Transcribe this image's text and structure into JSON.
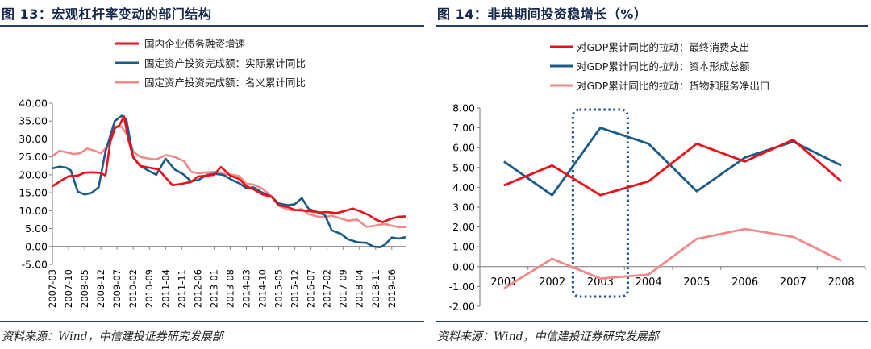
{
  "left": {
    "title": "图 13：宏观杠杆率变动的部门结构",
    "source": "资料来源：Wind，中信建投证券研究发展部"
  },
  "right": {
    "title": "图 14：非典期间投资稳增长（%）",
    "source": "资料来源：Wind，中信建投证券研究发展部"
  },
  "colors": {
    "red": "#e8111a",
    "blue": "#1b5b87",
    "pink": "#f08a8a",
    "title": "#14284b"
  },
  "chart_data": [
    {
      "type": "line",
      "title": "",
      "legend_position": "top-left",
      "ylim": [
        -5,
        40
      ],
      "yticks": [
        "-5.00",
        "0.00",
        "5.00",
        "10.00",
        "15.00",
        "20.00",
        "25.00",
        "30.00",
        "35.00",
        "40.00"
      ],
      "xticks": [
        "2007-03",
        "2007-10",
        "2008-05",
        "2008-12",
        "2009-07",
        "2010-02",
        "2010-09",
        "2011-04",
        "2011-11",
        "2012-06",
        "2013-01",
        "2013-08",
        "2014-03",
        "2014-10",
        "2015-05",
        "2015-12",
        "2016-07",
        "2017-02",
        "2017-09",
        "2018-04",
        "2018-11",
        "2019-06"
      ],
      "x_start": "2007-03",
      "x_end": "2019-12",
      "series": [
        {
          "name": "国内企业债务融资增速",
          "color": "#e8111a",
          "points": [
            [
              "2007-03",
              16.8
            ],
            [
              "2007-07",
              18.5
            ],
            [
              "2007-10",
              19.6
            ],
            [
              "2008-02",
              19.8
            ],
            [
              "2008-05",
              20.6
            ],
            [
              "2008-09",
              20.7
            ],
            [
              "2008-12",
              20.5
            ],
            [
              "2009-02",
              19.8
            ],
            [
              "2009-04",
              29.0
            ],
            [
              "2009-06",
              33.0
            ],
            [
              "2009-08",
              33.8
            ],
            [
              "2009-10",
              36.3
            ],
            [
              "2009-12",
              29.5
            ],
            [
              "2010-02",
              25.0
            ],
            [
              "2010-05",
              22.5
            ],
            [
              "2010-09",
              22.0
            ],
            [
              "2011-01",
              21.5
            ],
            [
              "2011-04",
              19.2
            ],
            [
              "2011-07",
              17.1
            ],
            [
              "2011-11",
              17.5
            ],
            [
              "2012-03",
              18.0
            ],
            [
              "2012-06",
              19.5
            ],
            [
              "2012-10",
              19.8
            ],
            [
              "2013-01",
              20.0
            ],
            [
              "2013-04",
              22.2
            ],
            [
              "2013-08",
              19.8
            ],
            [
              "2013-12",
              18.8
            ],
            [
              "2014-03",
              16.8
            ],
            [
              "2014-06",
              16.0
            ],
            [
              "2014-10",
              14.5
            ],
            [
              "2015-02",
              13.8
            ],
            [
              "2015-05",
              11.5
            ],
            [
              "2015-09",
              11.0
            ],
            [
              "2015-12",
              10.2
            ],
            [
              "2016-04",
              10.0
            ],
            [
              "2016-07",
              9.8
            ],
            [
              "2016-11",
              9.5
            ],
            [
              "2017-02",
              9.6
            ],
            [
              "2017-06",
              9.3
            ],
            [
              "2017-09",
              9.8
            ],
            [
              "2018-01",
              10.6
            ],
            [
              "2018-04",
              9.9
            ],
            [
              "2018-08",
              8.8
            ],
            [
              "2018-11",
              7.5
            ],
            [
              "2019-02",
              6.8
            ],
            [
              "2019-06",
              7.8
            ],
            [
              "2019-09",
              8.3
            ],
            [
              "2019-12",
              8.4
            ]
          ]
        },
        {
          "name": "固定资产投资完成额：实际累计同比",
          "color": "#1b5b87",
          "points": [
            [
              "2007-03",
              21.8
            ],
            [
              "2007-06",
              22.3
            ],
            [
              "2007-09",
              22.0
            ],
            [
              "2007-11",
              21.2
            ],
            [
              "2008-02",
              15.3
            ],
            [
              "2008-05",
              14.5
            ],
            [
              "2008-08",
              15.0
            ],
            [
              "2008-11",
              16.5
            ],
            [
              "2009-02",
              26.5
            ],
            [
              "2009-06",
              35.0
            ],
            [
              "2009-09",
              36.5
            ],
            [
              "2009-11",
              35.5
            ],
            [
              "2010-02",
              24.8
            ],
            [
              "2010-05",
              22.5
            ],
            [
              "2010-09",
              21.0
            ],
            [
              "2010-12",
              20.0
            ],
            [
              "2011-04",
              24.5
            ],
            [
              "2011-08",
              21.5
            ],
            [
              "2011-12",
              20.0
            ],
            [
              "2012-03",
              18.2
            ],
            [
              "2012-06",
              18.5
            ],
            [
              "2012-10",
              20.0
            ],
            [
              "2013-01",
              20.3
            ],
            [
              "2013-05",
              20.0
            ],
            [
              "2013-09",
              18.5
            ],
            [
              "2013-12",
              17.6
            ],
            [
              "2014-03",
              16.3
            ],
            [
              "2014-06",
              16.5
            ],
            [
              "2014-10",
              15.0
            ],
            [
              "2015-02",
              13.8
            ],
            [
              "2015-05",
              12.0
            ],
            [
              "2015-09",
              11.5
            ],
            [
              "2015-12",
              11.8
            ],
            [
              "2016-03",
              13.5
            ],
            [
              "2016-06",
              10.5
            ],
            [
              "2016-10",
              9.5
            ],
            [
              "2017-01",
              8.8
            ],
            [
              "2017-04",
              4.5
            ],
            [
              "2017-08",
              3.5
            ],
            [
              "2017-11",
              2.0
            ],
            [
              "2018-03",
              1.2
            ],
            [
              "2018-07",
              1.0
            ],
            [
              "2018-10",
              0.0
            ],
            [
              "2019-01",
              -0.2
            ],
            [
              "2019-03",
              0.5
            ],
            [
              "2019-06",
              2.5
            ],
            [
              "2019-09",
              2.2
            ],
            [
              "2019-12",
              2.6
            ]
          ]
        },
        {
          "name": "固定资产投资完成额：名义累计同比",
          "color": "#f08a8a",
          "points": [
            [
              "2007-03",
              25.2
            ],
            [
              "2007-06",
              26.7
            ],
            [
              "2007-09",
              26.3
            ],
            [
              "2007-12",
              25.8
            ],
            [
              "2008-03",
              26.0
            ],
            [
              "2008-06",
              27.3
            ],
            [
              "2008-09",
              26.8
            ],
            [
              "2008-12",
              26.0
            ],
            [
              "2009-03",
              28.0
            ],
            [
              "2009-06",
              33.5
            ],
            [
              "2009-09",
              33.4
            ],
            [
              "2009-12",
              30.5
            ],
            [
              "2010-02",
              26.5
            ],
            [
              "2010-05",
              25.0
            ],
            [
              "2010-09",
              24.5
            ],
            [
              "2010-12",
              24.3
            ],
            [
              "2011-04",
              25.5
            ],
            [
              "2011-08",
              25.0
            ],
            [
              "2011-12",
              23.8
            ],
            [
              "2012-03",
              20.9
            ],
            [
              "2012-06",
              20.4
            ],
            [
              "2012-10",
              20.7
            ],
            [
              "2013-01",
              20.8
            ],
            [
              "2013-05",
              20.3
            ],
            [
              "2013-09",
              20.0
            ],
            [
              "2013-12",
              19.6
            ],
            [
              "2014-03",
              17.5
            ],
            [
              "2014-06",
              17.3
            ],
            [
              "2014-10",
              16.1
            ],
            [
              "2015-02",
              14.0
            ],
            [
              "2015-05",
              11.4
            ],
            [
              "2015-09",
              10.3
            ],
            [
              "2015-12",
              10.0
            ],
            [
              "2016-03",
              10.5
            ],
            [
              "2016-06",
              9.0
            ],
            [
              "2016-10",
              8.3
            ],
            [
              "2017-01",
              8.2
            ],
            [
              "2017-04",
              8.6
            ],
            [
              "2017-08",
              7.8
            ],
            [
              "2017-11",
              7.2
            ],
            [
              "2018-03",
              7.5
            ],
            [
              "2018-07",
              5.5
            ],
            [
              "2018-10",
              5.7
            ],
            [
              "2019-01",
              6.1
            ],
            [
              "2019-03",
              6.3
            ],
            [
              "2019-06",
              5.8
            ],
            [
              "2019-09",
              5.4
            ],
            [
              "2019-12",
              5.4
            ]
          ]
        }
      ]
    },
    {
      "type": "line",
      "title": "",
      "legend_position": "top",
      "ylim": [
        -2,
        8
      ],
      "yticks": [
        "-2.00",
        "-1.00",
        "0.00",
        "1.00",
        "2.00",
        "3.00",
        "4.00",
        "5.00",
        "6.00",
        "7.00",
        "8.00"
      ],
      "categories": [
        "2001",
        "2002",
        "2003",
        "2004",
        "2005",
        "2006",
        "2007",
        "2008"
      ],
      "highlight_category": "2003",
      "series": [
        {
          "name": "对GDP累计同比的拉动：最终消费支出",
          "color": "#e8111a",
          "values": [
            4.1,
            5.1,
            3.6,
            4.3,
            6.2,
            5.3,
            6.4,
            4.3
          ]
        },
        {
          "name": "对GDP累计同比的拉动：资本形成总额",
          "color": "#1b5b87",
          "values": [
            5.3,
            3.6,
            7.0,
            6.2,
            3.8,
            5.5,
            6.3,
            5.1
          ]
        },
        {
          "name": "对GDP累计同比的拉动：货物和服务净出口",
          "color": "#f08a8a",
          "values": [
            -1.1,
            0.4,
            -0.6,
            -0.4,
            1.4,
            1.9,
            1.5,
            0.3
          ]
        }
      ]
    }
  ]
}
